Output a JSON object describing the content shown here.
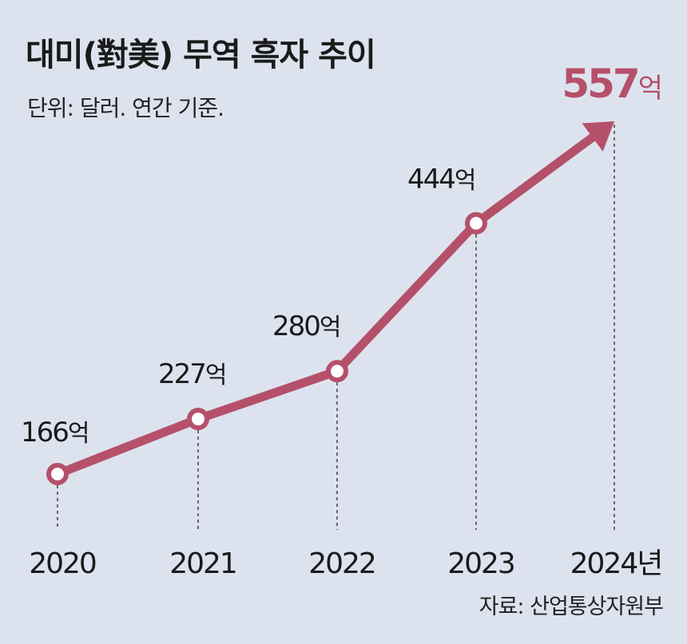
{
  "title": "대미(對美) 무역 흑자 추이",
  "subtitle": "단위: 달러. 연간 기준.",
  "source": "자료: 산업통상자원부",
  "colors": {
    "line": "#b5506a",
    "background": "#dde3ee"
  },
  "chart_data": {
    "type": "line",
    "x": [
      "2020",
      "2021",
      "2022",
      "2023",
      "2024년"
    ],
    "values": [
      166,
      227,
      280,
      444,
      557
    ],
    "value_labels": [
      "166",
      "227",
      "280",
      "444",
      "557"
    ],
    "value_unit": "억",
    "ylim": [
      166,
      557
    ],
    "grid": false,
    "last_point_arrow": true
  }
}
